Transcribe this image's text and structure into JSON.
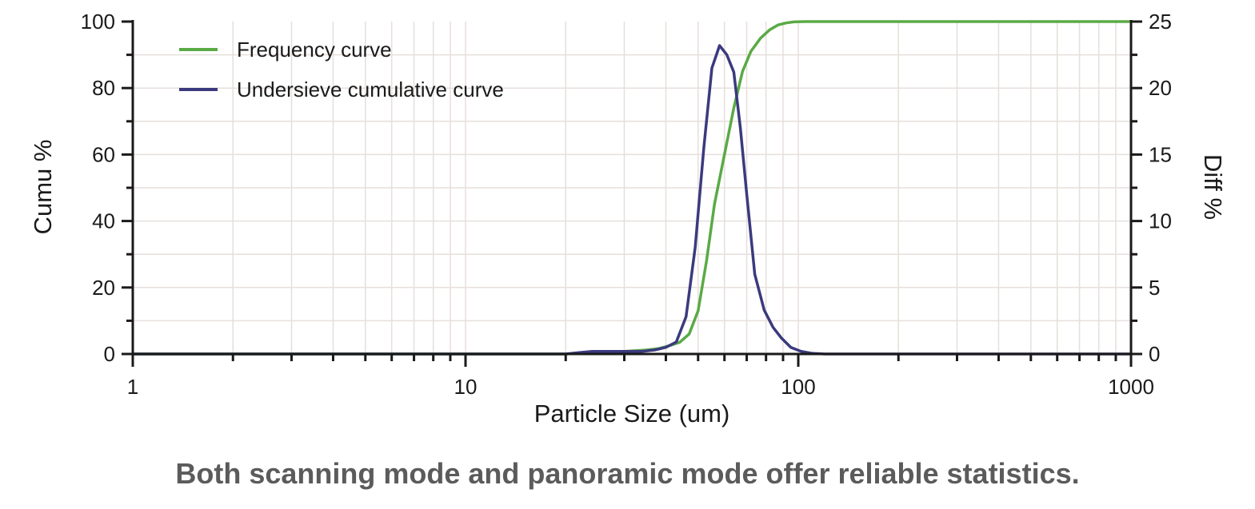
{
  "caption": "Both scanning mode and panoramic mode offer reliable statistics.",
  "colors": {
    "frequency": "#5aaa46",
    "undersieve": "#3b3a7e",
    "grid": "#e6dfdb",
    "axis": "#1a1a1a"
  },
  "chart_data": {
    "type": "line",
    "title": "",
    "xlabel": "Particle Size (um)",
    "ylabel": "Cumu %",
    "y2label": "Diff %",
    "xscale": "log",
    "xlim": [
      1,
      1000
    ],
    "ylim": [
      0,
      100
    ],
    "y2lim": [
      0,
      25
    ],
    "xticks": [
      1,
      10,
      100,
      1000
    ],
    "xtick_labels": [
      "1",
      "10",
      "100",
      "1000"
    ],
    "yticks": [
      0,
      20,
      40,
      60,
      80,
      100
    ],
    "ytick_labels": [
      "0",
      "20",
      "40",
      "60",
      "80",
      "100"
    ],
    "y2ticks": [
      0,
      5,
      10,
      15,
      20,
      25
    ],
    "y2tick_labels": [
      "0",
      "5",
      "10",
      "15",
      "20",
      "25"
    ],
    "grid": true,
    "legend": "top-left",
    "series": [
      {
        "name": "Frequency curve",
        "axis": "left",
        "color": "#5aaa46",
        "x": [
          1,
          20,
          25,
          30,
          35,
          38,
          41,
          44,
          47,
          50,
          53,
          56,
          60,
          64,
          68,
          72,
          77,
          82,
          87,
          92,
          97,
          105,
          120,
          200,
          1000
        ],
        "y": [
          0,
          0,
          0.5,
          0.8,
          1.2,
          1.6,
          2.5,
          3.5,
          6,
          13,
          28,
          45,
          60,
          74,
          85,
          91,
          95,
          97.5,
          99,
          99.6,
          99.9,
          100,
          100,
          100,
          100
        ]
      },
      {
        "name": "Undersieve cumulative curve",
        "axis": "right",
        "color": "#3b3a7e",
        "x": [
          1,
          20,
          22,
          24,
          27,
          30,
          34,
          37,
          40,
          43,
          46,
          49,
          52,
          55,
          58,
          61,
          64,
          67,
          70,
          74,
          79,
          84,
          89,
          95,
          102,
          110,
          120,
          1000
        ],
        "y": [
          0,
          0,
          0.1,
          0.2,
          0.2,
          0.2,
          0.2,
          0.3,
          0.5,
          0.9,
          2.8,
          8,
          15.5,
          21.5,
          23.2,
          22.5,
          21.2,
          17,
          12,
          6,
          3.3,
          2,
          1.2,
          0.5,
          0.2,
          0.05,
          0,
          0
        ]
      }
    ]
  }
}
